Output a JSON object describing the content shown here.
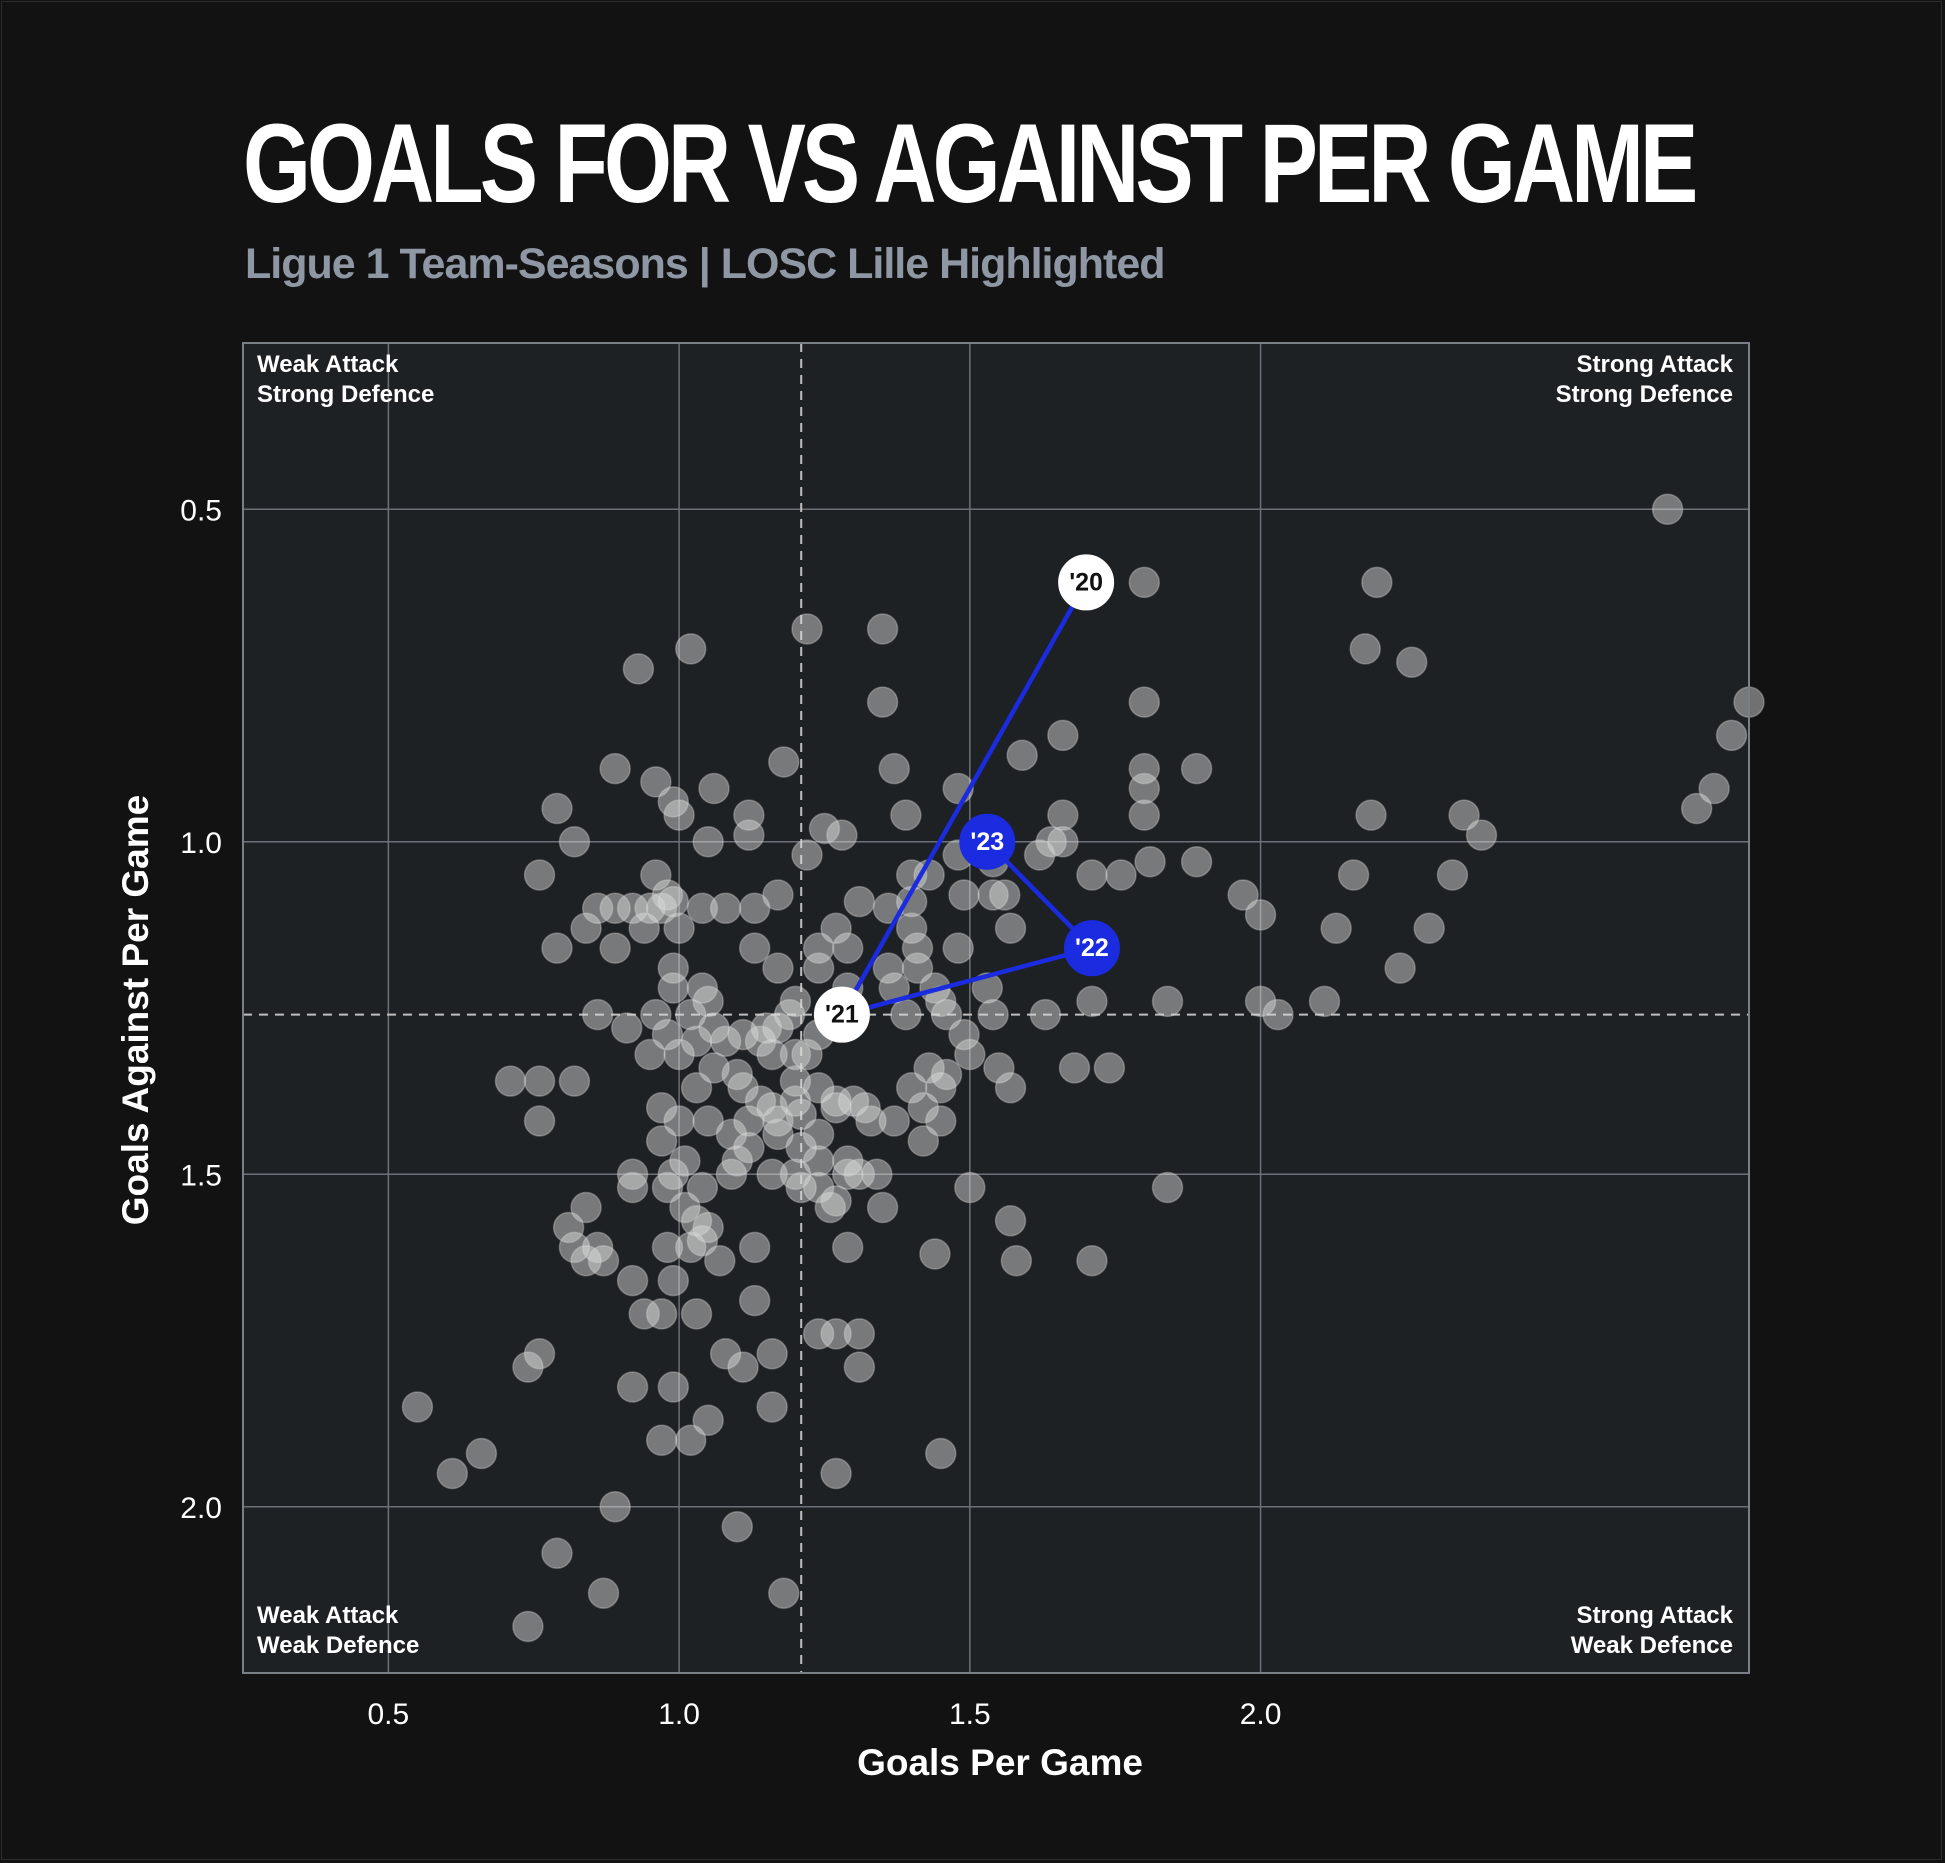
{
  "title": "GOALS FOR VS AGAINST PER GAME",
  "subtitle": "Ligue 1 Team-Seasons | LOSC Lille Highlighted",
  "colors": {
    "background": "#121212",
    "plot_background": "#1e2124",
    "grid": "#6c7078",
    "point_fill": "#d9d9d9",
    "highlight_blue": "#1a2be0",
    "highlight_white": "#ffffff",
    "text": "#ffffff",
    "subtitle": "#8e97a3"
  },
  "quadrants": {
    "top_left": [
      "Weak Attack",
      "Strong Defence"
    ],
    "top_right": [
      "Strong Attack",
      "Strong Defence"
    ],
    "bottom_left": [
      "Weak Attack",
      "Weak Defence"
    ],
    "bottom_right": [
      "Strong Attack",
      "Weak Defence"
    ]
  },
  "chart_data": {
    "type": "scatter",
    "title": "GOALS FOR VS AGAINST PER GAME",
    "subtitle": "Ligue 1 Team-Seasons | LOSC Lille Highlighted",
    "xlabel": "Goals Per Game",
    "ylabel": "Goals Against Per Game",
    "xlim": [
      0.25,
      2.84
    ],
    "ylim": [
      0.25,
      2.25
    ],
    "y_inverted": true,
    "xticks": [
      "0.5",
      "1.0",
      "1.5",
      "2.0"
    ],
    "yticks": [
      "0.5",
      "1.0",
      "1.5",
      "2.0"
    ],
    "xtick_values": [
      0.5,
      1.0,
      1.5,
      2.0
    ],
    "ytick_values": [
      0.5,
      1.0,
      1.5,
      2.0
    ],
    "grid": true,
    "reference_lines": {
      "x_mean": 1.21,
      "y_mean": 1.26
    },
    "points": [
      [
        2.7,
        0.5
      ],
      [
        1.8,
        0.61
      ],
      [
        2.2,
        0.61
      ],
      [
        1.22,
        0.68
      ],
      [
        1.35,
        0.68
      ],
      [
        1.02,
        0.71
      ],
      [
        2.18,
        0.71
      ],
      [
        2.26,
        0.73
      ],
      [
        0.93,
        0.74
      ],
      [
        1.35,
        0.79
      ],
      [
        1.8,
        0.79
      ],
      [
        2.84,
        0.79
      ],
      [
        1.66,
        0.84
      ],
      [
        2.81,
        0.84
      ],
      [
        1.59,
        0.87
      ],
      [
        1.18,
        0.88
      ],
      [
        1.37,
        0.89
      ],
      [
        0.89,
        0.89
      ],
      [
        1.8,
        0.89
      ],
      [
        1.89,
        0.89
      ],
      [
        0.96,
        0.91
      ],
      [
        1.06,
        0.92
      ],
      [
        2.78,
        0.92
      ],
      [
        0.99,
        0.94
      ],
      [
        1.8,
        0.92
      ],
      [
        1.48,
        0.92
      ],
      [
        2.75,
        0.95
      ],
      [
        0.79,
        0.95
      ],
      [
        1.12,
        0.96
      ],
      [
        1.39,
        0.96
      ],
      [
        1.0,
        0.96
      ],
      [
        1.66,
        0.96
      ],
      [
        1.8,
        0.96
      ],
      [
        2.19,
        0.96
      ],
      [
        2.35,
        0.96
      ],
      [
        1.25,
        0.98
      ],
      [
        1.28,
        0.99
      ],
      [
        1.12,
        0.99
      ],
      [
        2.38,
        0.99
      ],
      [
        0.82,
        1.0
      ],
      [
        1.05,
        1.0
      ],
      [
        1.64,
        1.0
      ],
      [
        1.66,
        1.0
      ],
      [
        1.22,
        1.02
      ],
      [
        1.48,
        1.02
      ],
      [
        1.62,
        1.02
      ],
      [
        1.81,
        1.03
      ],
      [
        1.89,
        1.03
      ],
      [
        1.54,
        1.03
      ],
      [
        0.76,
        1.05
      ],
      [
        0.96,
        1.05
      ],
      [
        1.4,
        1.05
      ],
      [
        1.43,
        1.05
      ],
      [
        1.71,
        1.05
      ],
      [
        1.76,
        1.05
      ],
      [
        2.16,
        1.05
      ],
      [
        2.33,
        1.05
      ],
      [
        1.17,
        1.08
      ],
      [
        0.98,
        1.08
      ],
      [
        1.49,
        1.08
      ],
      [
        1.54,
        1.08
      ],
      [
        1.56,
        1.08
      ],
      [
        1.97,
        1.08
      ],
      [
        0.99,
        1.09
      ],
      [
        1.31,
        1.09
      ],
      [
        1.4,
        1.09
      ],
      [
        0.86,
        1.1
      ],
      [
        0.89,
        1.1
      ],
      [
        0.92,
        1.1
      ],
      [
        0.95,
        1.1
      ],
      [
        0.97,
        1.1
      ],
      [
        1.04,
        1.1
      ],
      [
        1.08,
        1.1
      ],
      [
        1.13,
        1.1
      ],
      [
        1.36,
        1.1
      ],
      [
        2.0,
        1.11
      ],
      [
        0.84,
        1.13
      ],
      [
        0.94,
        1.13
      ],
      [
        1.0,
        1.13
      ],
      [
        1.27,
        1.13
      ],
      [
        1.4,
        1.13
      ],
      [
        1.57,
        1.13
      ],
      [
        2.13,
        1.13
      ],
      [
        2.29,
        1.13
      ],
      [
        0.89,
        1.16
      ],
      [
        0.79,
        1.16
      ],
      [
        1.13,
        1.16
      ],
      [
        1.24,
        1.16
      ],
      [
        1.41,
        1.16
      ],
      [
        1.48,
        1.16
      ],
      [
        1.29,
        1.16
      ],
      [
        0.99,
        1.19
      ],
      [
        1.17,
        1.19
      ],
      [
        1.24,
        1.19
      ],
      [
        1.36,
        1.19
      ],
      [
        1.41,
        1.19
      ],
      [
        2.24,
        1.19
      ],
      [
        0.99,
        1.22
      ],
      [
        1.04,
        1.22
      ],
      [
        1.29,
        1.22
      ],
      [
        1.37,
        1.22
      ],
      [
        1.44,
        1.22
      ],
      [
        1.53,
        1.22
      ],
      [
        1.45,
        1.24
      ],
      [
        1.05,
        1.24
      ],
      [
        1.2,
        1.24
      ],
      [
        1.71,
        1.24
      ],
      [
        1.84,
        1.24
      ],
      [
        2.0,
        1.24
      ],
      [
        2.11,
        1.24
      ],
      [
        0.86,
        1.26
      ],
      [
        0.96,
        1.26
      ],
      [
        1.02,
        1.26
      ],
      [
        1.19,
        1.26
      ],
      [
        1.39,
        1.26
      ],
      [
        1.46,
        1.26
      ],
      [
        1.54,
        1.26
      ],
      [
        1.63,
        1.26
      ],
      [
        2.03,
        1.26
      ],
      [
        0.91,
        1.28
      ],
      [
        1.06,
        1.28
      ],
      [
        1.15,
        1.28
      ],
      [
        1.17,
        1.28
      ],
      [
        0.98,
        1.29
      ],
      [
        1.11,
        1.29
      ],
      [
        1.24,
        1.29
      ],
      [
        1.49,
        1.29
      ],
      [
        1.03,
        1.3
      ],
      [
        1.08,
        1.3
      ],
      [
        1.14,
        1.3
      ],
      [
        1.2,
        1.32
      ],
      [
        0.95,
        1.32
      ],
      [
        1.0,
        1.32
      ],
      [
        1.16,
        1.32
      ],
      [
        1.22,
        1.32
      ],
      [
        1.06,
        1.34
      ],
      [
        1.5,
        1.32
      ],
      [
        1.55,
        1.34
      ],
      [
        1.43,
        1.34
      ],
      [
        1.68,
        1.34
      ],
      [
        1.74,
        1.34
      ],
      [
        1.1,
        1.35
      ],
      [
        1.46,
        1.35
      ],
      [
        0.71,
        1.36
      ],
      [
        0.76,
        1.36
      ],
      [
        0.82,
        1.36
      ],
      [
        1.2,
        1.36
      ],
      [
        1.24,
        1.37
      ],
      [
        1.11,
        1.37
      ],
      [
        1.03,
        1.37
      ],
      [
        1.4,
        1.37
      ],
      [
        1.45,
        1.37
      ],
      [
        1.57,
        1.37
      ],
      [
        1.14,
        1.39
      ],
      [
        1.2,
        1.39
      ],
      [
        1.27,
        1.39
      ],
      [
        1.3,
        1.39
      ],
      [
        0.97,
        1.4
      ],
      [
        1.16,
        1.4
      ],
      [
        1.27,
        1.4
      ],
      [
        1.32,
        1.4
      ],
      [
        1.42,
        1.4
      ],
      [
        1.21,
        1.41
      ],
      [
        1.05,
        1.42
      ],
      [
        0.76,
        1.42
      ],
      [
        1.0,
        1.42
      ],
      [
        1.12,
        1.42
      ],
      [
        1.17,
        1.42
      ],
      [
        1.33,
        1.42
      ],
      [
        1.37,
        1.42
      ],
      [
        1.45,
        1.42
      ],
      [
        1.09,
        1.44
      ],
      [
        1.17,
        1.44
      ],
      [
        1.24,
        1.44
      ],
      [
        1.42,
        1.45
      ],
      [
        0.97,
        1.45
      ],
      [
        1.12,
        1.46
      ],
      [
        1.21,
        1.46
      ],
      [
        1.29,
        1.48
      ],
      [
        1.01,
        1.48
      ],
      [
        1.1,
        1.48
      ],
      [
        1.24,
        1.48
      ],
      [
        1.09,
        1.5
      ],
      [
        1.16,
        1.5
      ],
      [
        1.2,
        1.5
      ],
      [
        0.92,
        1.5
      ],
      [
        0.99,
        1.5
      ],
      [
        1.29,
        1.5
      ],
      [
        1.31,
        1.5
      ],
      [
        1.34,
        1.5
      ],
      [
        0.92,
        1.52
      ],
      [
        0.98,
        1.52
      ],
      [
        1.04,
        1.52
      ],
      [
        1.21,
        1.52
      ],
      [
        1.24,
        1.52
      ],
      [
        1.5,
        1.52
      ],
      [
        1.84,
        1.52
      ],
      [
        1.27,
        1.54
      ],
      [
        0.84,
        1.55
      ],
      [
        1.01,
        1.55
      ],
      [
        1.26,
        1.55
      ],
      [
        1.35,
        1.55
      ],
      [
        1.03,
        1.57
      ],
      [
        1.57,
        1.57
      ],
      [
        0.81,
        1.58
      ],
      [
        1.05,
        1.58
      ],
      [
        1.04,
        1.6
      ],
      [
        0.82,
        1.61
      ],
      [
        0.86,
        1.61
      ],
      [
        0.98,
        1.61
      ],
      [
        1.02,
        1.61
      ],
      [
        1.13,
        1.61
      ],
      [
        1.29,
        1.61
      ],
      [
        0.84,
        1.63
      ],
      [
        0.87,
        1.63
      ],
      [
        1.07,
        1.63
      ],
      [
        1.44,
        1.62
      ],
      [
        1.58,
        1.63
      ],
      [
        1.71,
        1.63
      ],
      [
        0.92,
        1.66
      ],
      [
        0.99,
        1.66
      ],
      [
        1.13,
        1.69
      ],
      [
        0.94,
        1.71
      ],
      [
        0.97,
        1.71
      ],
      [
        1.03,
        1.71
      ],
      [
        1.24,
        1.74
      ],
      [
        1.27,
        1.74
      ],
      [
        1.31,
        1.74
      ],
      [
        0.76,
        1.77
      ],
      [
        1.08,
        1.77
      ],
      [
        1.16,
        1.77
      ],
      [
        0.74,
        1.79
      ],
      [
        1.11,
        1.79
      ],
      [
        1.31,
        1.79
      ],
      [
        0.92,
        1.82
      ],
      [
        0.99,
        1.82
      ],
      [
        1.16,
        1.85
      ],
      [
        0.55,
        1.85
      ],
      [
        1.05,
        1.87
      ],
      [
        0.97,
        1.9
      ],
      [
        1.02,
        1.9
      ],
      [
        0.66,
        1.92
      ],
      [
        1.45,
        1.92
      ],
      [
        0.61,
        1.95
      ],
      [
        1.27,
        1.95
      ],
      [
        0.89,
        2.0
      ],
      [
        1.1,
        2.03
      ],
      [
        0.79,
        2.07
      ],
      [
        0.87,
        2.13
      ],
      [
        1.18,
        2.13
      ],
      [
        0.74,
        2.18
      ]
    ],
    "highlight": {
      "team": "LOSC Lille",
      "seasons": [
        {
          "label": "'20",
          "x": 1.7,
          "y": 0.61,
          "style": "white"
        },
        {
          "label": "'21",
          "x": 1.28,
          "y": 1.26,
          "style": "white"
        },
        {
          "label": "'22",
          "x": 1.71,
          "y": 1.16,
          "style": "blue"
        },
        {
          "label": "'23",
          "x": 1.53,
          "y": 1.0,
          "style": "blue"
        }
      ]
    }
  }
}
